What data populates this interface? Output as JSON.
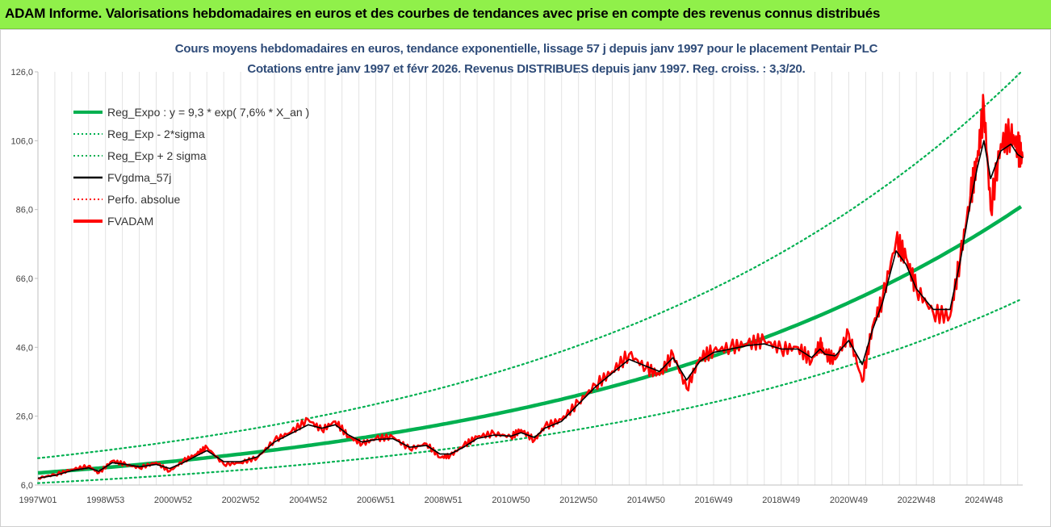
{
  "header": {
    "title": "ADAM Informe. Valorisations hebdomadaires en euros et des courbes de tendances avec prise en compte des revenus connus distribués"
  },
  "chart_data": {
    "type": "line",
    "title": "Cours moyens hebdomadaires en euros, tendance exponentielle, lissage 57 j depuis janv 1997  pour le placement Pentair PLC",
    "subtitle": "Cotations entre janv 1997 et févr 2026. Revenus DISTRIBUES depuis janv 1997. Reg. croiss. : 3,3/20.",
    "ylim": [
      6,
      126
    ],
    "y_ticks": [
      "6,0",
      "26,0",
      "46,0",
      "66,0",
      "86,0",
      "106,0",
      "126,0"
    ],
    "x_range": [
      1997.0,
      2026.15
    ],
    "x_ticks": [
      {
        "year": 1997.0,
        "label": "1997W01"
      },
      {
        "year": 1999.0,
        "label": "1998W53"
      },
      {
        "year": 2001.0,
        "label": "2000W52"
      },
      {
        "year": 2003.0,
        "label": "2002W52"
      },
      {
        "year": 2005.0,
        "label": "2004W52"
      },
      {
        "year": 2007.0,
        "label": "2006W51"
      },
      {
        "year": 2009.0,
        "label": "2008W51"
      },
      {
        "year": 2011.0,
        "label": "2010W50"
      },
      {
        "year": 2013.0,
        "label": "2012W50"
      },
      {
        "year": 2015.0,
        "label": "2014W50"
      },
      {
        "year": 2017.0,
        "label": "2016W49"
      },
      {
        "year": 2019.0,
        "label": "2018W49"
      },
      {
        "year": 2021.0,
        "label": "2020W49"
      },
      {
        "year": 2023.0,
        "label": "2022W48"
      },
      {
        "year": 2025.0,
        "label": "2024W48"
      }
    ],
    "grid": "vertical",
    "legend_position": "top-left",
    "regression": {
      "a": 9.3,
      "rate": 0.076,
      "band_low_factor": 0.69,
      "band_high_factor": 1.45
    },
    "series": [
      {
        "name": "Reg_Expo : y = 9,3 * exp( 7,6% *  X_an )",
        "color": "#00b050",
        "style": "solid-thick"
      },
      {
        "name": "Reg_Exp - 2*sigma",
        "color": "#00b050",
        "style": "dotted"
      },
      {
        "name": "Reg_Exp + 2 sigma",
        "color": "#00b050",
        "style": "dotted"
      },
      {
        "name": "FVgdma_57j",
        "color": "#000000",
        "style": "solid"
      },
      {
        "name": "Perfo. absolue",
        "color": "#ff0000",
        "style": "dotted"
      },
      {
        "name": "FVADAM",
        "color": "#ff0000",
        "style": "solid-thick",
        "x": [
          1997.0,
          1997.5,
          1998.0,
          1998.5,
          1998.8,
          1999.2,
          1999.6,
          2000.0,
          2000.5,
          2000.9,
          2001.3,
          2001.7,
          2002.0,
          2002.5,
          2003.0,
          2003.5,
          2004.0,
          2004.5,
          2005.0,
          2005.4,
          2005.8,
          2006.2,
          2006.6,
          2007.0,
          2007.5,
          2008.0,
          2008.5,
          2008.9,
          2009.2,
          2009.6,
          2010.0,
          2010.5,
          2011.0,
          2011.3,
          2011.7,
          2012.0,
          2012.5,
          2013.0,
          2013.5,
          2014.0,
          2014.5,
          2015.0,
          2015.4,
          2015.8,
          2016.2,
          2016.6,
          2017.0,
          2017.5,
          2018.0,
          2018.5,
          2019.0,
          2019.5,
          2019.9,
          2020.15,
          2020.3,
          2020.6,
          2021.0,
          2021.4,
          2021.7,
          2022.0,
          2022.4,
          2022.7,
          2023.0,
          2023.5,
          2024.0,
          2024.3,
          2024.6,
          2024.8,
          2025.0,
          2025.2,
          2025.5,
          2025.8,
          2026.0,
          2026.15
        ],
        "y": [
          8.0,
          9.0,
          10.5,
          11.5,
          9.5,
          13.0,
          12.0,
          11.0,
          12.5,
          10.0,
          13.0,
          15.0,
          17.0,
          12.0,
          12.5,
          14.0,
          19.0,
          21.5,
          25.0,
          22.0,
          24.5,
          20.0,
          18.0,
          19.5,
          20.0,
          16.5,
          18.0,
          14.0,
          14.5,
          17.5,
          20.0,
          21.0,
          20.0,
          22.0,
          19.0,
          23.0,
          25.0,
          30.0,
          35.0,
          39.0,
          44.0,
          40.0,
          38.0,
          44.0,
          34.0,
          43.0,
          45.0,
          46.0,
          47.0,
          48.0,
          45.5,
          46.0,
          42.0,
          47.0,
          44.0,
          42.5,
          50.0,
          36.0,
          52.0,
          60.0,
          77.0,
          72.0,
          63.0,
          56.0,
          55.0,
          72.0,
          90.0,
          100.0,
          116.0,
          86.0,
          105.0,
          108.0,
          104.0,
          101.0
        ]
      }
    ],
    "fvgdma_points": {
      "x": [
        1997.0,
        1997.5,
        1998.0,
        1998.5,
        1998.8,
        1999.2,
        1999.6,
        2000.0,
        2000.5,
        2000.9,
        2001.3,
        2001.7,
        2002.0,
        2002.5,
        2003.0,
        2003.5,
        2004.0,
        2004.5,
        2005.0,
        2005.4,
        2005.8,
        2006.2,
        2006.6,
        2007.0,
        2007.5,
        2008.0,
        2008.5,
        2008.9,
        2009.2,
        2009.6,
        2010.0,
        2010.5,
        2011.0,
        2011.3,
        2011.7,
        2012.0,
        2012.5,
        2013.0,
        2013.5,
        2014.0,
        2014.5,
        2015.0,
        2015.4,
        2015.8,
        2016.2,
        2016.6,
        2017.0,
        2017.5,
        2018.0,
        2018.5,
        2019.0,
        2019.5,
        2019.9,
        2020.15,
        2020.3,
        2020.6,
        2021.0,
        2021.4,
        2021.7,
        2022.0,
        2022.4,
        2022.7,
        2023.0,
        2023.5,
        2024.0,
        2024.3,
        2024.6,
        2024.8,
        2025.0,
        2025.2,
        2025.5,
        2025.8,
        2026.0,
        2026.15
      ],
      "y": [
        8.0,
        8.8,
        10.2,
        11.0,
        10.0,
        12.5,
        12.0,
        11.3,
        12.0,
        10.8,
        12.5,
        14.5,
        16.0,
        12.8,
        12.8,
        14.2,
        18.5,
        21.0,
        23.5,
        22.5,
        23.5,
        20.5,
        18.5,
        19.2,
        19.5,
        17.0,
        17.5,
        15.0,
        15.0,
        17.0,
        19.5,
        20.5,
        20.2,
        21.2,
        19.8,
        22.5,
        24.5,
        29.5,
        34.5,
        38.5,
        42.5,
        40.5,
        39.0,
        43.0,
        36.5,
        42.0,
        44.5,
        45.5,
        46.5,
        47.0,
        45.5,
        45.5,
        43.0,
        45.5,
        44.0,
        43.5,
        48.0,
        41.0,
        51.0,
        59.0,
        74.0,
        70.0,
        63.0,
        57.0,
        57.0,
        71.0,
        88.0,
        98.0,
        106.0,
        95.0,
        103.0,
        105.0,
        102.0,
        101.0
      ]
    }
  }
}
